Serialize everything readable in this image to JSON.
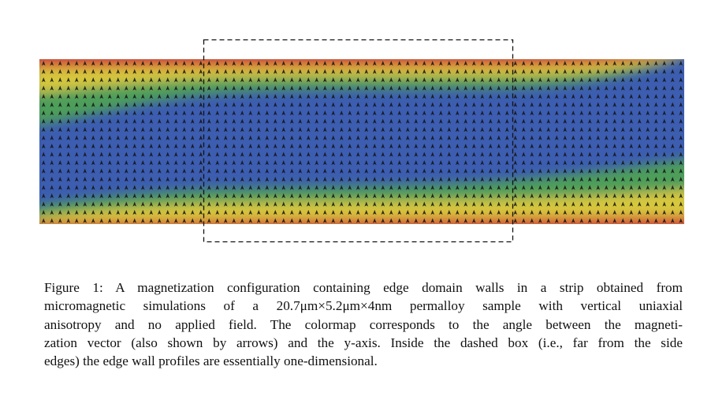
{
  "figure": {
    "caption": {
      "lines": [
        "Figure 1: A magnetization configuration containing edge domain walls in a strip obtained from",
        "micromagnetic simulations of a 20.7μm×5.2μm×4nm permalloy sample with vertical uniaxial",
        "anisotropy and no applied field. The colormap corresponds to the angle between the magneti-",
        "zation vector (also shown by arrows) and the y-axis. Inside the dashed box (i.e., far from the side",
        "edges) the edge wall profiles are essentially one-dimensional."
      ]
    }
  }
}
